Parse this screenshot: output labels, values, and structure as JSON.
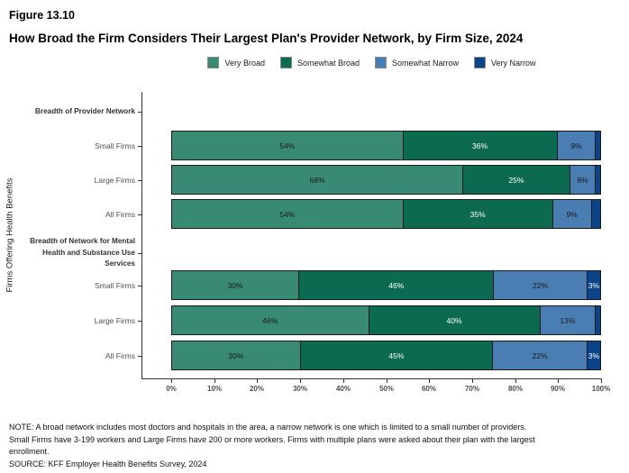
{
  "figure_label": "Figure 13.10",
  "title": "How Broad the Firm Considers Their Largest Plan's Provider Network, by Firm Size, 2024",
  "y_axis_title": "Firms Offering Health Benefits",
  "legend": [
    {
      "label": "Very Broad",
      "color": "#398a75"
    },
    {
      "label": "Somewhat Broad",
      "color": "#0b6a50"
    },
    {
      "label": "Somewhat Narrow",
      "color": "#4a7db2"
    },
    {
      "label": "Very Narrow",
      "color": "#0b4489"
    }
  ],
  "chart_data": {
    "type": "bar",
    "orientation": "horizontal",
    "stacked": true,
    "title": "How Broad the Firm Considers Their Largest Plan's Provider Network, by Firm Size, 2024",
    "xlabel": "",
    "ylabel": "Firms Offering Health Benefits",
    "xlim_percent": [
      0,
      100
    ],
    "x_ticks": [
      "0%",
      "10%",
      "20%",
      "30%",
      "40%",
      "50%",
      "60%",
      "70%",
      "80%",
      "90%",
      "100%"
    ],
    "series_names": [
      "Very Broad",
      "Somewhat Broad",
      "Somewhat Narrow",
      "Very Narrow"
    ],
    "groups": [
      {
        "header": "Breadth of Provider Network",
        "header_lines": [
          "Breadth of Provider Network"
        ],
        "rows": [
          {
            "category": "Small Firms",
            "values": [
              54,
              36,
              9,
              1
            ],
            "value_labels": [
              "54%",
              "36%",
              "9%",
              ""
            ]
          },
          {
            "category": "Large Firms",
            "values": [
              68,
              25,
              6,
              1
            ],
            "value_labels": [
              "68%",
              "25%",
              "6%",
              ""
            ]
          },
          {
            "category": "All Firms",
            "values": [
              54,
              35,
              9,
              2
            ],
            "value_labels": [
              "54%",
              "35%",
              "9%",
              ""
            ]
          }
        ]
      },
      {
        "header": "Breadth of Network for Mental Health and Substance Use Services",
        "header_lines": [
          "Breadth of Network for Mental",
          "Health and Substance Use",
          "Services"
        ],
        "rows": [
          {
            "category": "Small Firms",
            "values": [
              30,
              46,
              22,
              3
            ],
            "value_labels": [
              "30%",
              "46%",
              "22%",
              "3%"
            ]
          },
          {
            "category": "Large Firms",
            "values": [
              46,
              40,
              13,
              1
            ],
            "value_labels": [
              "46%",
              "40%",
              "13%",
              ""
            ]
          },
          {
            "category": "All Firms",
            "values": [
              30,
              45,
              22,
              3
            ],
            "value_labels": [
              "30%",
              "45%",
              "22%",
              "3%"
            ]
          }
        ]
      }
    ]
  },
  "footnotes": [
    "NOTE: A broad network includes most doctors and hospitals in the area, a narrow network is one which is limited to a small number of providers.",
    "Small Firms have 3-199 workers and Large Firms have 200 or more workers.  Firms with multiple plans were asked about their plan with the largest",
    "enrollment.",
    "SOURCE: KFF Employer Health Benefits Survey, 2024"
  ]
}
